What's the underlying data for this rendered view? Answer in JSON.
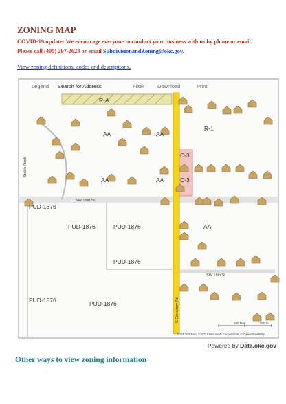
{
  "header": {
    "title": "ZONING MAP",
    "notice_line1": "COVID-19 update: We encourage everyone to conduct your business with us by phone or email.",
    "notice_line2": "Please call (405) 297-2623 or email",
    "email": "SubdivisionandZoning@okc.gov",
    "notice_end": "."
  },
  "links": {
    "zoning_definitions": "View zoning definitions, codes and descriptions."
  },
  "map": {
    "toolbar": [
      "Legend",
      "Search for Address",
      "Filter",
      "Download",
      "Print"
    ],
    "zone_labels": [
      "R-A",
      "AA",
      "AA",
      "R-1",
      "C-3",
      "C-3",
      "AA",
      "AA",
      "PUD-1876",
      "PUD-1876",
      "PUD-1876",
      "PUD-1876",
      "PUD-1876",
      "PUD-1876",
      "AA"
    ],
    "streets": [
      "SW 15th St",
      "SW 18th St",
      "S Cemetery Rd",
      "Stable Rock"
    ],
    "attribution": "© 2024 TomTom, © 2024 Microsoft Corporation, © OpenStreetMap",
    "scale": [
      "600 feet",
      "200 m"
    ]
  },
  "footer": {
    "powered_by": "Powered by",
    "powered_link": "Data.okc.gov",
    "other_ways": "Other ways to view zoning information"
  }
}
